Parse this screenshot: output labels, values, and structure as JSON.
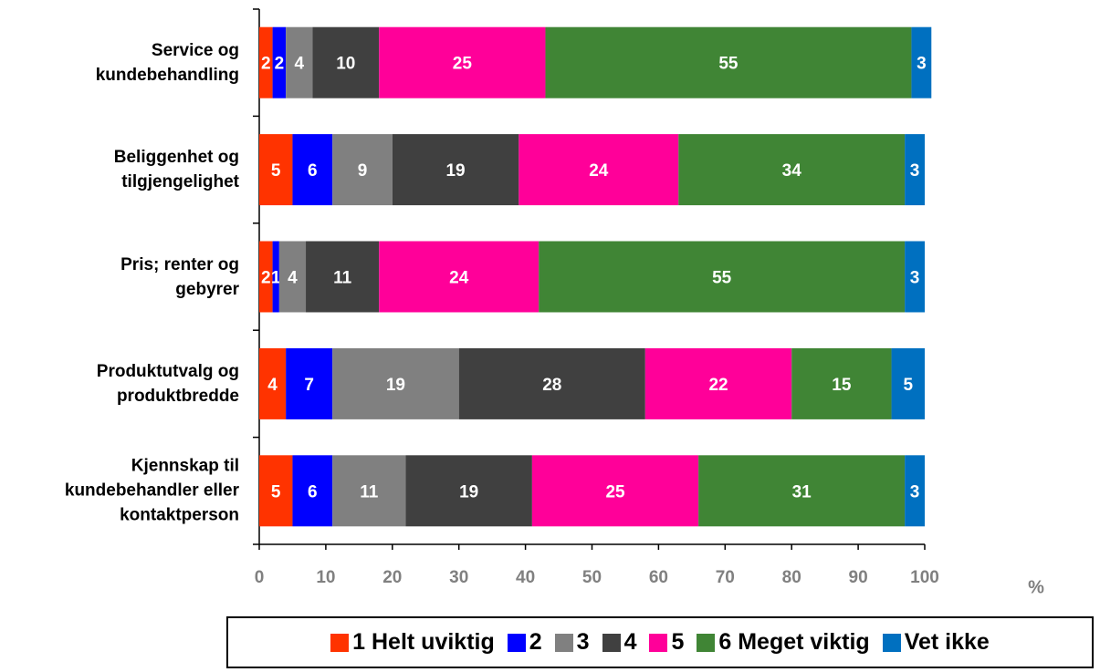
{
  "chart_data": {
    "type": "stacked-bar-horizontal",
    "categories": [
      "Service og\nkundebehandling",
      "Beliggenhet og\ntilgjengelighet",
      "Pris; renter og\ngebyrer",
      "Produktutvalg og\nproduktbredde",
      "Kjennskap til\nkundebehandler eller\nkontaktperson"
    ],
    "series": [
      {
        "name": "1 Helt uviktig",
        "color": "#ff3300",
        "values": [
          2,
          5,
          2,
          4,
          5
        ]
      },
      {
        "name": "2",
        "color": "#0000ff",
        "values": [
          2,
          6,
          1,
          7,
          6
        ]
      },
      {
        "name": "3",
        "color": "#808080",
        "values": [
          4,
          9,
          4,
          19,
          11
        ]
      },
      {
        "name": "4",
        "color": "#404040",
        "values": [
          10,
          19,
          11,
          28,
          19
        ]
      },
      {
        "name": "5",
        "color": "#ff0099",
        "values": [
          25,
          24,
          24,
          22,
          25
        ]
      },
      {
        "name": "6 Meget viktig",
        "color": "#408535",
        "values": [
          55,
          34,
          55,
          15,
          31
        ]
      },
      {
        "name": "Vet ikke",
        "color": "#0070c0",
        "values": [
          3,
          3,
          3,
          5,
          3
        ]
      }
    ],
    "x_label": "%",
    "xlim": [
      0,
      100
    ],
    "xticks": [
      0,
      10,
      20,
      30,
      40,
      50,
      60,
      70,
      80,
      90,
      100
    ],
    "legend": "bottom"
  }
}
